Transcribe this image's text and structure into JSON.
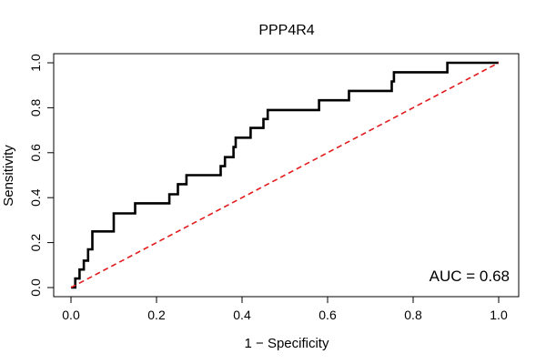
{
  "chart_data": {
    "type": "line",
    "title": "PPP4R4",
    "xlabel": "1 − Specificity",
    "ylabel": "Sensitivity",
    "xlim": [
      0,
      1
    ],
    "ylim": [
      0,
      1
    ],
    "x_ticks": [
      "0.0",
      "0.2",
      "0.4",
      "0.6",
      "0.8",
      "1.0"
    ],
    "y_ticks": [
      "0.0",
      "0.2",
      "0.4",
      "0.6",
      "0.8",
      "1.0"
    ],
    "grid": false,
    "annotation": "AUC = 0.68",
    "colors": {
      "roc": "#000000",
      "reference": "#e31a1c"
    },
    "series": [
      {
        "style": "solid",
        "x": [
          0.0,
          0.0,
          0.01,
          0.01,
          0.02,
          0.02,
          0.03,
          0.03,
          0.04,
          0.04,
          0.05,
          0.05,
          0.1,
          0.1,
          0.15,
          0.15,
          0.23,
          0.23,
          0.25,
          0.25,
          0.27,
          0.27,
          0.35,
          0.35,
          0.36,
          0.36,
          0.38,
          0.38,
          0.385,
          0.385,
          0.42,
          0.42,
          0.45,
          0.45,
          0.46,
          0.46,
          0.58,
          0.58,
          0.65,
          0.65,
          0.75,
          0.75,
          0.755,
          0.755,
          0.88,
          0.88,
          1.0
        ],
        "y": [
          0.0,
          0.0,
          0.0,
          0.04,
          0.04,
          0.08,
          0.08,
          0.12,
          0.12,
          0.17,
          0.17,
          0.25,
          0.25,
          0.33,
          0.33,
          0.375,
          0.375,
          0.415,
          0.415,
          0.46,
          0.46,
          0.5,
          0.5,
          0.54,
          0.54,
          0.58,
          0.58,
          0.625,
          0.625,
          0.667,
          0.667,
          0.71,
          0.71,
          0.75,
          0.75,
          0.79,
          0.79,
          0.833,
          0.833,
          0.875,
          0.875,
          0.917,
          0.917,
          0.958,
          0.958,
          1.0,
          1.0
        ]
      },
      {
        "style": "dashed",
        "x": [
          0.0,
          1.0
        ],
        "y": [
          0.0,
          1.0
        ]
      }
    ]
  }
}
